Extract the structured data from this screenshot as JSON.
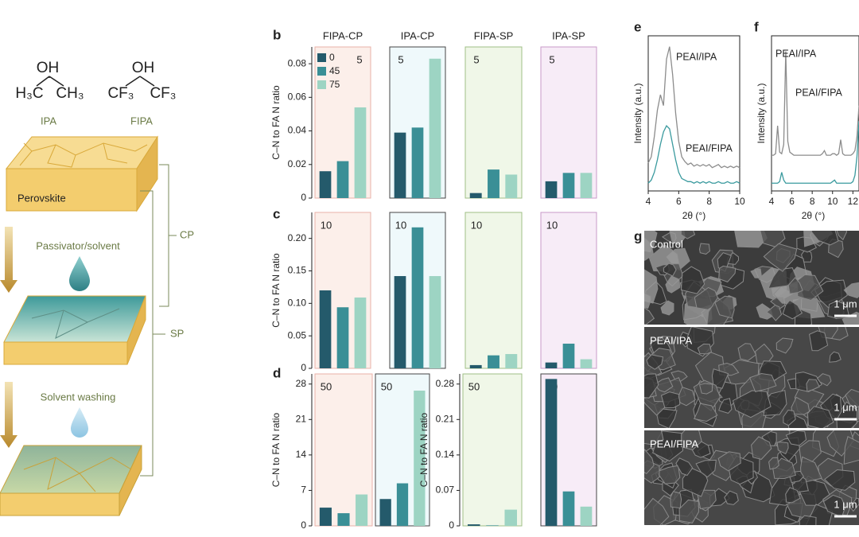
{
  "panel_a": {
    "molecules": [
      {
        "name": "IPA",
        "oh": "OH",
        "left": "H₃C",
        "right": "CH₃"
      },
      {
        "name": "FIPA",
        "oh": "OH",
        "left": "CF₃",
        "right": "CF₃"
      }
    ],
    "layer": "Perovskite",
    "steps": [
      "Passivator/solvent",
      "Solvent washing"
    ],
    "brackets": [
      "CP",
      "SP"
    ]
  },
  "chart_data": [
    {
      "type": "bar",
      "panel": "b",
      "categories": [
        "FIPA-CP",
        "IPA-CP",
        "FIPA-SP",
        "IPA-SP"
      ],
      "ylabel": "C–N to FA N ratio",
      "ylim": [
        0,
        0.09
      ],
      "yticks": [
        0,
        0.02,
        0.04,
        0.06,
        0.08
      ],
      "annotation": 5,
      "legend": "upper left",
      "category_fills": [
        "#fcefea",
        "#eff9fb",
        "#f0f7e8",
        "#f7ecf7"
      ],
      "category_strokes": [
        "#e9b2a8",
        "#444444",
        "#9fbf86",
        "#c89ac9"
      ],
      "series": [
        {
          "name": "0",
          "color": "#245a6b",
          "values": [
            0.016,
            0.039,
            0.003,
            0.01
          ]
        },
        {
          "name": "45",
          "color": "#3a8f96",
          "values": [
            0.022,
            0.042,
            0.017,
            0.015
          ]
        },
        {
          "name": "75",
          "color": "#9dd4c3",
          "values": [
            0.054,
            0.083,
            0.014,
            0.015
          ]
        }
      ]
    },
    {
      "type": "bar",
      "panel": "c",
      "categories": [
        null,
        null,
        null,
        null
      ],
      "ylabel": "C–N to FA N ratio",
      "ylim": [
        0,
        0.24
      ],
      "yticks": [
        0,
        0.05,
        {
          "value": 0.1,
          "label": "0.10"
        },
        0.15,
        {
          "value": 0.2,
          "label": "0.20"
        }
      ],
      "annotation": 10,
      "category_fills": [
        "#fcefea",
        "#eff9fb",
        "#f0f7e8",
        "#f7ecf7"
      ],
      "category_strokes": [
        "#e9b2a8",
        "#444444",
        "#9fbf86",
        "#c89ac9"
      ],
      "series": [
        {
          "color": "#245a6b",
          "values": [
            0.12,
            0.142,
            0.005,
            0.009
          ]
        },
        {
          "color": "#3a8f96",
          "values": [
            0.094,
            0.217,
            0.02,
            0.038
          ]
        },
        {
          "color": "#9dd4c3",
          "values": [
            0.109,
            0.142,
            0.022,
            0.014
          ]
        }
      ]
    },
    {
      "type": "bar",
      "panel": "d",
      "categories": [
        null,
        null,
        null,
        null
      ],
      "ylabel": "C–N to FA N ratio",
      "y2label": "C–N to FA N ratio",
      "ylim": [
        0,
        30
      ],
      "yticks": [
        0,
        7,
        14,
        21,
        28
      ],
      "y2lim": [
        0,
        0.3
      ],
      "y2ticks": [
        0,
        0.07,
        0.14,
        0.21,
        0.28
      ],
      "category_axis": [
        "y",
        "y",
        "y2",
        "y2"
      ],
      "annotation": 50,
      "category_fills": [
        "#fcefea",
        "#eff9fb",
        "#f0f7e8",
        "#f7ecf7"
      ],
      "category_strokes": [
        "#e9b2a8",
        "#444444",
        "#9fbf86",
        "#444444"
      ],
      "series": [
        {
          "color": "#245a6b",
          "values": [
            3.6,
            5.3,
            0.003,
            0.29
          ]
        },
        {
          "color": "#3a8f96",
          "values": [
            2.5,
            8.4,
            0.001,
            0.068
          ]
        },
        {
          "color": "#9dd4c3",
          "values": [
            6.2,
            26.7,
            0.032,
            0.038
          ]
        }
      ]
    },
    {
      "type": "line",
      "panel": "e",
      "xlabel": "2θ (°)",
      "ylabel": "Intensity (a.u.)",
      "xlim": [
        4,
        10
      ],
      "xticks": [
        4,
        6,
        8,
        10
      ],
      "ylim": [
        0,
        1
      ],
      "x": [
        4,
        4.2,
        4.4,
        4.6,
        4.8,
        5,
        5.2,
        5.4,
        5.6,
        5.8,
        6,
        6.2,
        6.4,
        6.6,
        6.8,
        7,
        7.2,
        7.4,
        7.6,
        7.8,
        8,
        8.2,
        8.4,
        8.6,
        8.8,
        9,
        9.2,
        9.4,
        9.6,
        9.8,
        10
      ],
      "series": [
        {
          "name": "PEAI/IPA",
          "color": "#8c8c8c",
          "values": [
            0.18,
            0.22,
            0.35,
            0.52,
            0.62,
            0.55,
            0.85,
            0.93,
            0.75,
            0.5,
            0.32,
            0.22,
            0.19,
            0.17,
            0.18,
            0.16,
            0.17,
            0.16,
            0.17,
            0.16,
            0.17,
            0.15,
            0.16,
            0.17,
            0.15,
            0.16,
            0.15,
            0.16,
            0.15,
            0.16,
            0.15
          ]
        },
        {
          "name": "PEAI/FIPA",
          "color": "#3a9a9e",
          "values": [
            0.05,
            0.07,
            0.12,
            0.2,
            0.3,
            0.38,
            0.42,
            0.4,
            0.3,
            0.2,
            0.12,
            0.08,
            0.07,
            0.06,
            0.06,
            0.05,
            0.06,
            0.05,
            0.06,
            0.05,
            0.06,
            0.05,
            0.05,
            0.06,
            0.05,
            0.05,
            0.06,
            0.05,
            0.05,
            0.06,
            0.05
          ]
        }
      ]
    },
    {
      "type": "line",
      "panel": "f",
      "xlabel": "2θ (°)",
      "ylabel": "Intensity (a.u.)",
      "xlim": [
        4,
        12.6
      ],
      "xticks": [
        4,
        6,
        8,
        10,
        12
      ],
      "ylim": [
        0,
        1
      ],
      "x": [
        4,
        4.2,
        4.4,
        4.6,
        4.8,
        5,
        5.2,
        5.4,
        5.6,
        5.8,
        6,
        6.2,
        6.4,
        6.6,
        6.8,
        7,
        7.2,
        7.4,
        7.6,
        7.8,
        8,
        8.2,
        8.4,
        8.6,
        8.8,
        9,
        9.2,
        9.4,
        9.6,
        9.8,
        10,
        10.2,
        10.4,
        10.6,
        10.8,
        11,
        11.2,
        11.4,
        11.6,
        11.8,
        12,
        12.2,
        12.4,
        12.6
      ],
      "series": [
        {
          "name": "PEAI/IPA",
          "color": "#8c8c8c",
          "values": [
            0.23,
            0.23,
            0.24,
            0.42,
            0.25,
            0.24,
            0.3,
            0.9,
            0.32,
            0.25,
            0.24,
            0.23,
            0.23,
            0.23,
            0.23,
            0.23,
            0.23,
            0.23,
            0.23,
            0.23,
            0.23,
            0.23,
            0.23,
            0.23,
            0.23,
            0.24,
            0.26,
            0.23,
            0.23,
            0.23,
            0.24,
            0.24,
            0.23,
            0.24,
            0.33,
            0.24,
            0.23,
            0.23,
            0.23,
            0.23,
            0.24,
            0.26,
            0.35,
            0.55
          ]
        },
        {
          "name": "PEAI/FIPA",
          "color": "#3a9a9e",
          "values": [
            0.05,
            0.05,
            0.05,
            0.05,
            0.06,
            0.12,
            0.07,
            0.05,
            0.05,
            0.05,
            0.05,
            0.05,
            0.05,
            0.05,
            0.05,
            0.05,
            0.05,
            0.05,
            0.05,
            0.05,
            0.05,
            0.05,
            0.05,
            0.05,
            0.05,
            0.05,
            0.05,
            0.05,
            0.05,
            0.05,
            0.06,
            0.07,
            0.05,
            0.05,
            0.05,
            0.05,
            0.05,
            0.05,
            0.05,
            0.05,
            0.06,
            0.1,
            0.22,
            0.45
          ]
        }
      ]
    }
  ],
  "panel_g": {
    "panel": "g",
    "images": [
      {
        "label": "Control",
        "scale": "1 μm"
      },
      {
        "label": "PEAI/IPA",
        "scale": "1 μm"
      },
      {
        "label": "PEAI/FIPA",
        "scale": "1 μm"
      }
    ]
  }
}
